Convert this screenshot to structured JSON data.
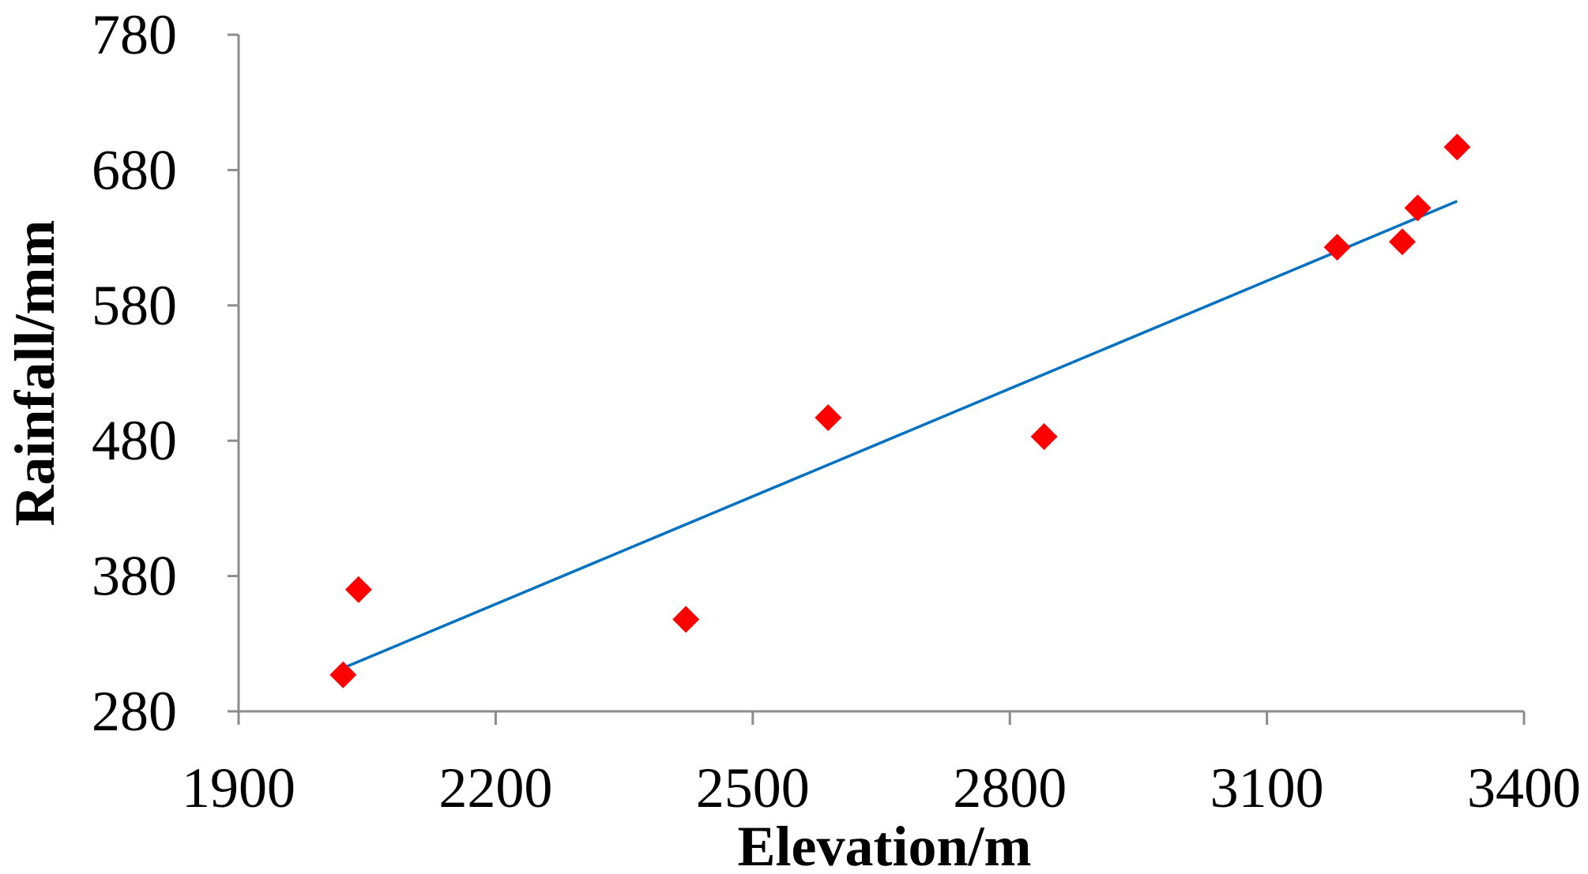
{
  "chart_data": {
    "type": "scatter",
    "title": "",
    "xlabel": "Elevation/m",
    "ylabel": "Rainfall/mm",
    "xlim": [
      1900,
      3400
    ],
    "ylim": [
      280,
      780
    ],
    "xticks": [
      1900,
      2200,
      2500,
      2800,
      3100,
      3400
    ],
    "yticks": [
      280,
      380,
      480,
      580,
      680,
      780
    ],
    "xtick_labels": [
      "1900",
      "2200",
      "2500",
      "2800",
      "3100",
      "3400"
    ],
    "ytick_labels": [
      "280",
      "380",
      "480",
      "580",
      "680",
      "780"
    ],
    "grid": false,
    "legend": "none",
    "series": [
      {
        "marker": "diamond",
        "color": "#ff0000",
        "x": [
          2022,
          2040,
          2422,
          2588,
          2840,
          3182,
          3258,
          3276,
          3322
        ],
        "y": [
          307,
          370,
          348,
          497,
          483,
          623,
          627,
          652,
          697
        ]
      }
    ],
    "trendline": {
      "type": "linear",
      "color": "#0070c0",
      "x": [
        2022,
        3322
      ],
      "y": [
        312,
        657
      ]
    }
  }
}
